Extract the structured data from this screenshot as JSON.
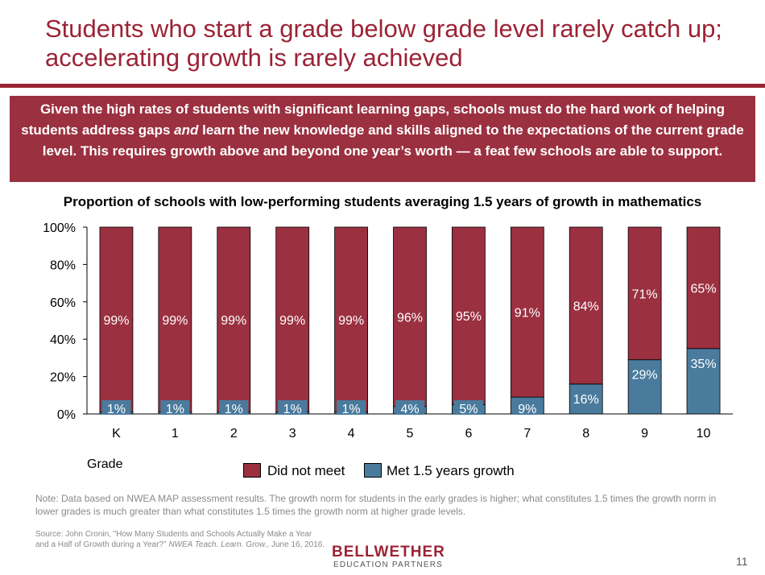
{
  "slide": {
    "title": "Students who start a grade below grade level rarely catch up; accelerating growth is rarely achieved",
    "banner": {
      "part1": "Given the high rates of students with significant learning gaps, schools must do the hard work of helping students address gaps ",
      "emphasis": "and",
      "part2": " learn the new knowledge and skills aligned to the expectations of the current grade level. This requires growth above and beyond one year’s worth — a feat few schools are able to support."
    },
    "grade_label": "Grade",
    "note": "Note: Data based on NWEA MAP assessment results. The growth norm for students in the early grades is higher; what constitutes 1.5 times the growth norm in lower grades is much greater than what constitutes 1.5 times the growth norm at higher grade levels.",
    "source": {
      "part1": "Source: John Cronin, \"How Many Students and Schools Actually Make a Year and a Half of Growth during a Year?\" ",
      "journal": "NWEA Teach. Learn. Grow.",
      "part2": ", June 16, 2016."
    },
    "logo": {
      "main": "BELLWETHER",
      "sub": "EDUCATION PARTNERS"
    },
    "page_number": "11"
  },
  "colors": {
    "brand": "#9b2335",
    "banner_bg": "#9b3040",
    "did_not_meet": "#9b3040",
    "met": "#4a7b9d"
  },
  "chart_data": {
    "type": "bar",
    "stacked": true,
    "title": "Proportion of schools with low-performing students averaging 1.5 years of growth in mathematics",
    "xlabel": "Grade",
    "categories": [
      "K",
      "1",
      "2",
      "3",
      "4",
      "5",
      "6",
      "7",
      "8",
      "9",
      "10"
    ],
    "series": [
      {
        "name": "Met 1.5 years growth",
        "values": [
          1,
          1,
          1,
          1,
          1,
          4,
          5,
          9,
          16,
          29,
          35
        ],
        "color": "#4a7b9d"
      },
      {
        "name": "Did not meet",
        "values": [
          99,
          99,
          99,
          99,
          99,
          96,
          95,
          91,
          84,
          71,
          65
        ],
        "color": "#9b3040"
      }
    ],
    "ylim": [
      0,
      100
    ],
    "yticks": [
      "0%",
      "20%",
      "40%",
      "60%",
      "80%",
      "100%"
    ],
    "data_labels": {
      "met": [
        "1%",
        "1%",
        "1%",
        "1%",
        "1%",
        "4%",
        "5%",
        "9%",
        "16%",
        "29%",
        "35%"
      ],
      "did_not_meet": [
        "99%",
        "99%",
        "99%",
        "99%",
        "99%",
        "96%",
        "95%",
        "91%",
        "84%",
        "71%",
        "65%"
      ]
    },
    "grid": false,
    "legend_position": "bottom",
    "legend_order": [
      "Did not meet",
      "Met 1.5 years growth"
    ]
  }
}
